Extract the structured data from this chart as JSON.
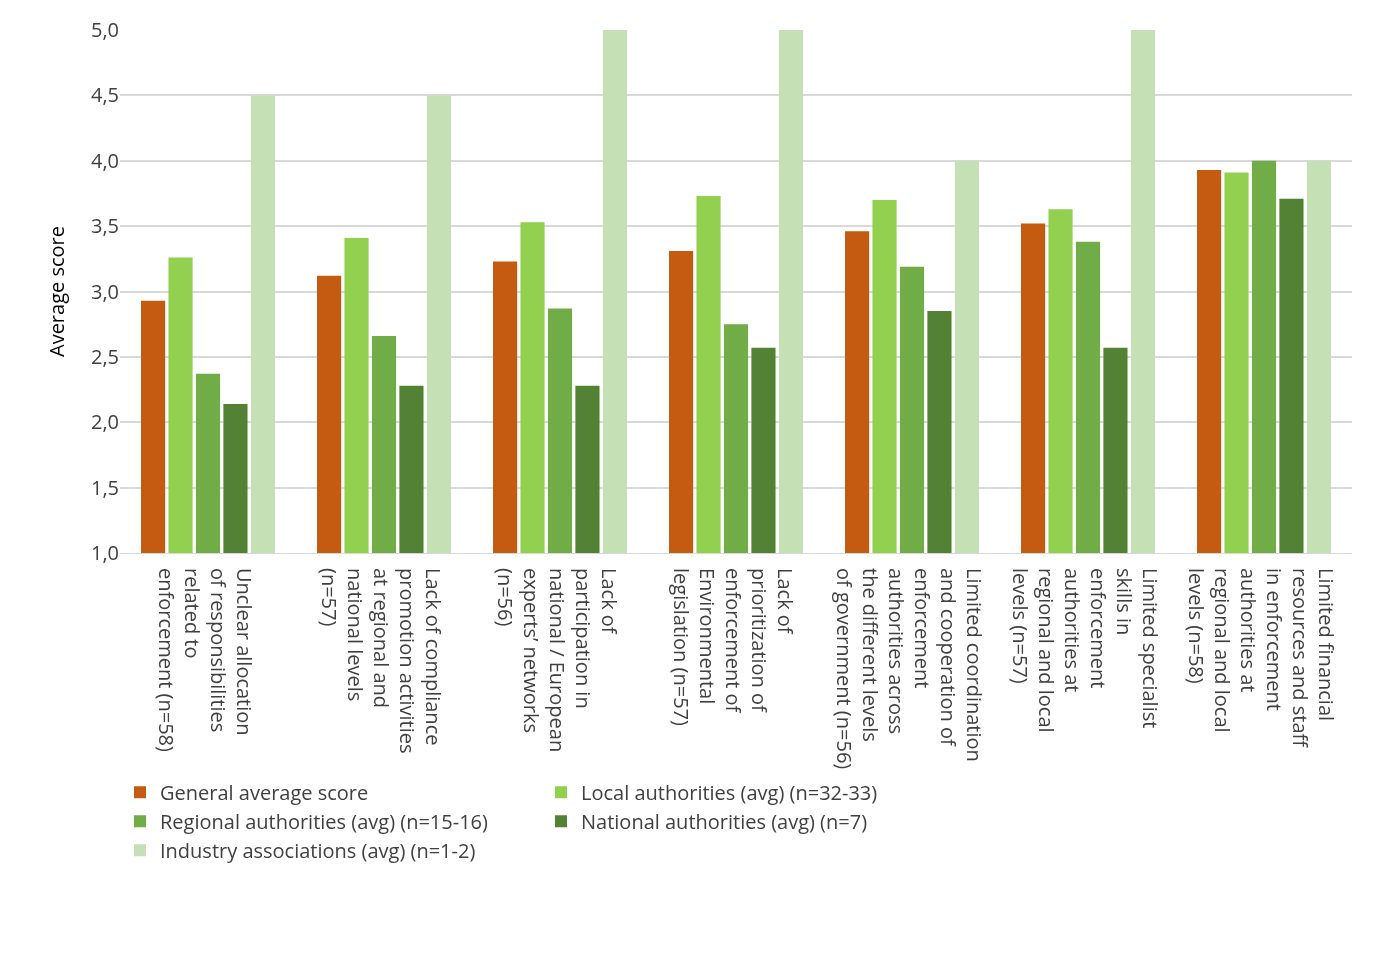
{
  "chart_data": {
    "type": "bar",
    "ylabel": "Average score",
    "categories": [
      "Unclear allocation of responsibilities related to enforcement (n=58)",
      "Lack of compliance promotion activities at regional and national levels (n=57)",
      "Lack of participation in national / European experts’ networks (n=56)",
      "Lack of prioritization of enforcement of Environmental legislation (n=57)",
      "Limited coordination and cooperation of enforcement authorities across the different levels of government (n=56)",
      "Limited specialist skills in enforcement authorities at regional and local levels (n=57)",
      "Limited financial resources and staff in enforcement authorities at regional and local levels (n=58)"
    ],
    "series": [
      {
        "name": "General average score",
        "color": "#c55a11",
        "values": [
          2.93,
          3.12,
          3.23,
          3.31,
          3.46,
          3.52,
          3.93
        ]
      },
      {
        "name": "Local authorities (avg) (n=32-33)",
        "color": "#92d050",
        "values": [
          3.26,
          3.41,
          3.53,
          3.73,
          3.7,
          3.63,
          3.91
        ]
      },
      {
        "name": "Regional authorities (avg) (n=15-16)",
        "color": "#70ad47",
        "values": [
          2.37,
          2.66,
          2.87,
          2.75,
          3.19,
          3.38,
          4.0
        ]
      },
      {
        "name": "National authorities (avg) (n=7)",
        "color": "#548235",
        "values": [
          2.14,
          2.28,
          2.28,
          2.57,
          2.85,
          2.57,
          3.71
        ]
      },
      {
        "name": "Industry associations (avg) (n=1-2)",
        "color": "#c5e0b4",
        "values": [
          4.5,
          4.5,
          5.0,
          5.0,
          4.0,
          5.0,
          4.0
        ]
      }
    ],
    "ylim": [
      1,
      5
    ],
    "yticks": [
      {
        "value": 1,
        "label": "1,0"
      },
      {
        "value": 1.5,
        "label": "1,5"
      },
      {
        "value": 2,
        "label": "2,0"
      },
      {
        "value": 2.5,
        "label": "2,5"
      },
      {
        "value": 3,
        "label": "3,0"
      },
      {
        "value": 3.5,
        "label": "3,5"
      },
      {
        "value": 4,
        "label": "4,0"
      },
      {
        "value": 4.5,
        "label": "4,5"
      },
      {
        "value": 5,
        "label": "5,0"
      }
    ],
    "grid": "y",
    "legend": "bottom"
  }
}
